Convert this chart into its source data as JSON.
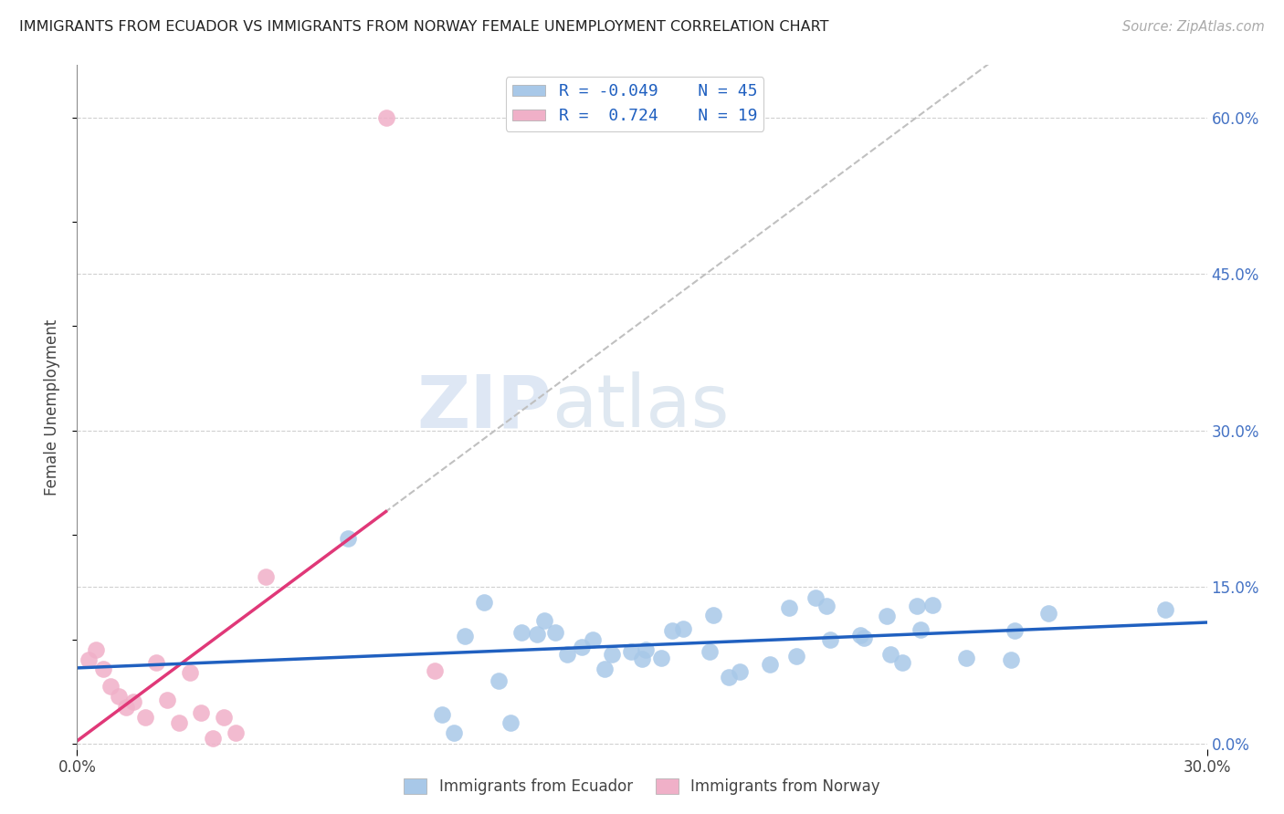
{
  "title": "IMMIGRANTS FROM ECUADOR VS IMMIGRANTS FROM NORWAY FEMALE UNEMPLOYMENT CORRELATION CHART",
  "source": "Source: ZipAtlas.com",
  "ylabel": "Female Unemployment",
  "xlim": [
    0.0,
    0.3
  ],
  "ylim": [
    -0.005,
    0.65
  ],
  "yticks": [
    0.0,
    0.15,
    0.3,
    0.45,
    0.6
  ],
  "ytick_labels": [
    "0.0%",
    "15.0%",
    "30.0%",
    "45.0%",
    "60.0%"
  ],
  "xticks": [
    0.0,
    0.3
  ],
  "xtick_labels": [
    "0.0%",
    "30.0%"
  ],
  "ecuador_R": -0.049,
  "ecuador_N": 45,
  "norway_R": 0.724,
  "norway_N": 19,
  "ecuador_color": "#a8c8e8",
  "norway_color": "#f0b0c8",
  "ecuador_line_color": "#2060c0",
  "norway_line_color": "#e03878",
  "dashed_line_color": "#c0c0c0",
  "background_color": "#ffffff",
  "watermark_zip": "ZIP",
  "watermark_atlas": "atlas",
  "ecuador_x": [
    0.289,
    0.258,
    0.249,
    0.248,
    0.236,
    0.227,
    0.224,
    0.223,
    0.219,
    0.216,
    0.215,
    0.209,
    0.208,
    0.2,
    0.199,
    0.196,
    0.191,
    0.189,
    0.184,
    0.176,
    0.173,
    0.169,
    0.168,
    0.161,
    0.158,
    0.155,
    0.151,
    0.15,
    0.147,
    0.142,
    0.14,
    0.137,
    0.134,
    0.13,
    0.127,
    0.124,
    0.122,
    0.118,
    0.115,
    0.112,
    0.108,
    0.103,
    0.1,
    0.097,
    0.072
  ],
  "ecuador_y": [
    0.128,
    0.125,
    0.108,
    0.08,
    0.082,
    0.133,
    0.109,
    0.132,
    0.078,
    0.086,
    0.122,
    0.101,
    0.104,
    0.1,
    0.132,
    0.14,
    0.084,
    0.13,
    0.076,
    0.069,
    0.064,
    0.123,
    0.088,
    0.11,
    0.108,
    0.082,
    0.09,
    0.081,
    0.088,
    0.086,
    0.072,
    0.1,
    0.093,
    0.086,
    0.107,
    0.118,
    0.105,
    0.107,
    0.02,
    0.06,
    0.135,
    0.103,
    0.01,
    0.028,
    0.197
  ],
  "norway_x": [
    0.003,
    0.005,
    0.007,
    0.009,
    0.011,
    0.013,
    0.015,
    0.018,
    0.021,
    0.024,
    0.027,
    0.03,
    0.033,
    0.036,
    0.039,
    0.042,
    0.05,
    0.082,
    0.095
  ],
  "norway_y": [
    0.08,
    0.09,
    0.072,
    0.055,
    0.045,
    0.035,
    0.04,
    0.025,
    0.078,
    0.042,
    0.02,
    0.068,
    0.03,
    0.005,
    0.025,
    0.01,
    0.16,
    0.6,
    0.07
  ],
  "legend1_label": "Immigrants from Ecuador",
  "legend2_label": "Immigrants from Norway"
}
